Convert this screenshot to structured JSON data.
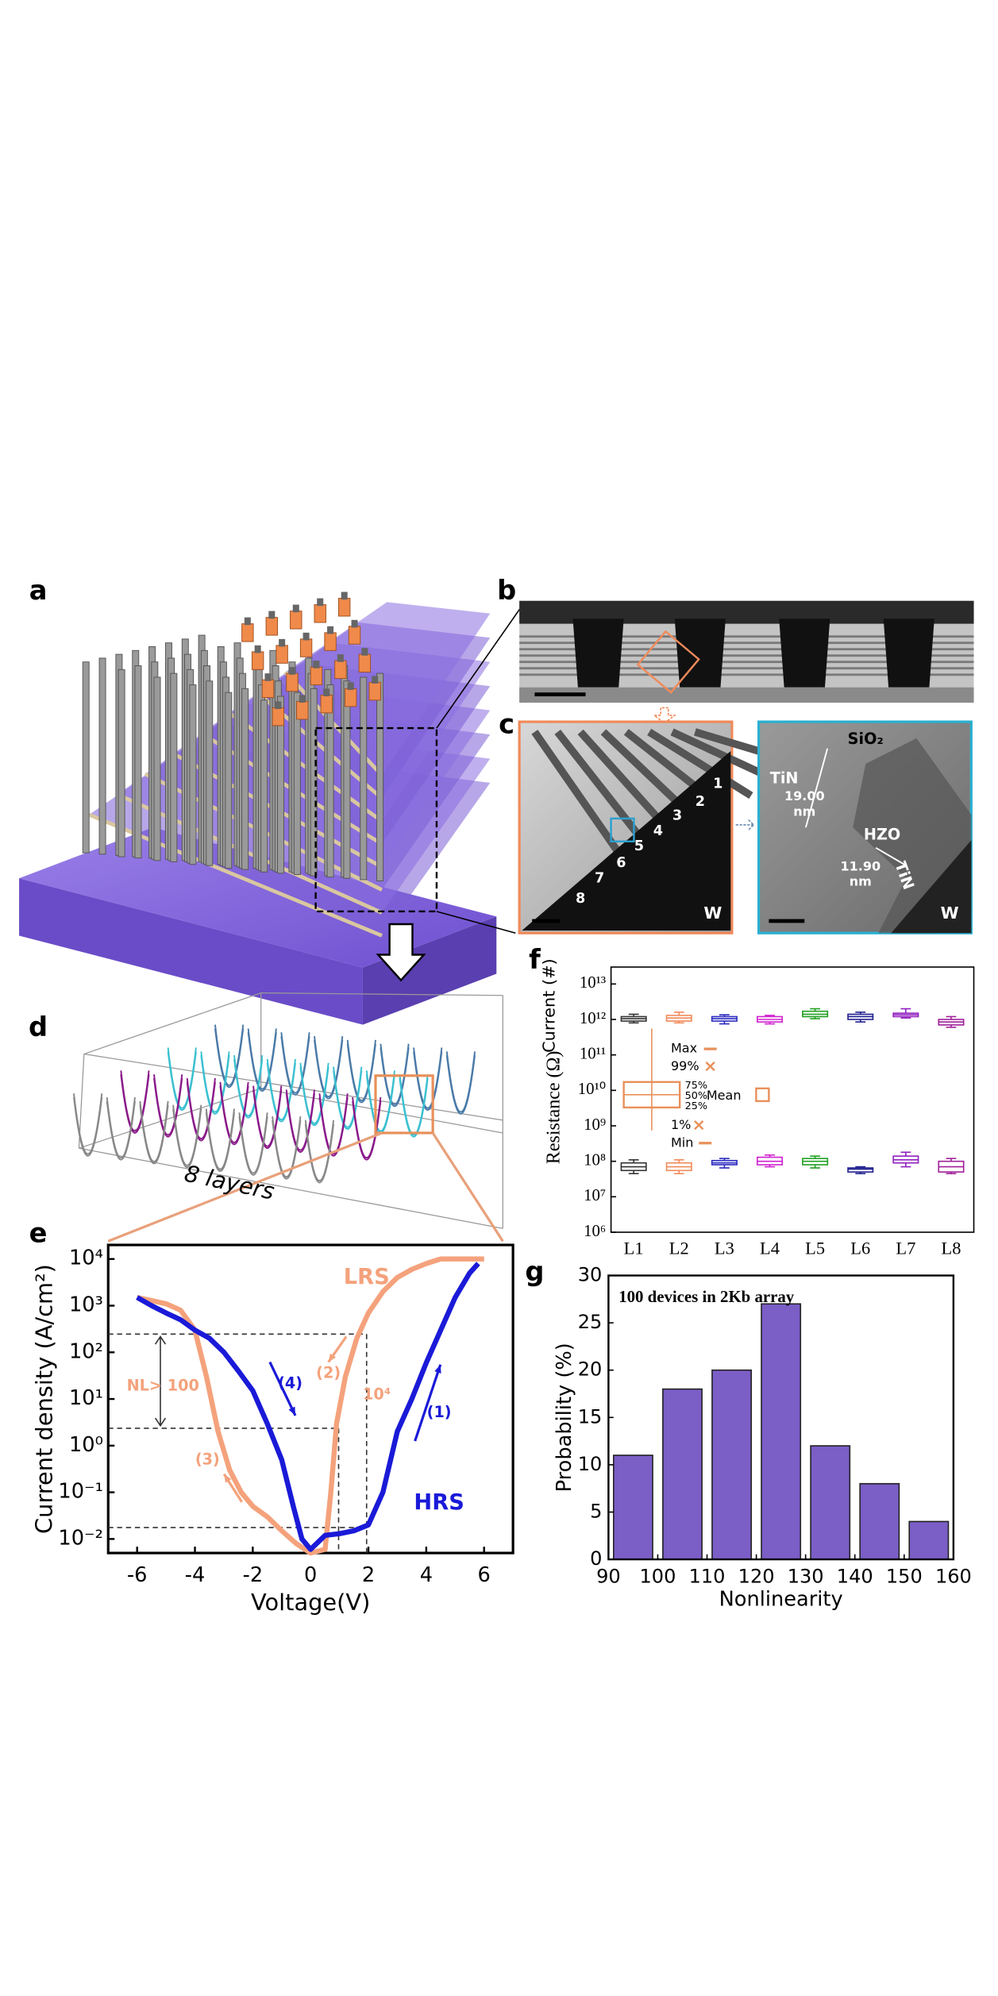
{
  "panel_labels": [
    "a",
    "b",
    "c",
    "d",
    "e",
    "f",
    "g"
  ],
  "tem_labels": {
    "layers": [
      "1",
      "2",
      "3",
      "4",
      "5",
      "6",
      "7",
      "8"
    ],
    "electrode_left": "W",
    "oxide": "SiO₂",
    "tin_top": "TiN",
    "thickness_tin": "19.00",
    "unit_tin": "nm",
    "hzo": "HZO",
    "thickness_hzo": "11.90",
    "unit_hzo": "nm",
    "tin_side": "TiN",
    "electrode_right": "W"
  },
  "stack_label": "8 layers",
  "chart_data": [
    {
      "type": "line",
      "xlabel": "Voltage(V)",
      "ylabel": "Current density (A/cm²)",
      "xlim": [
        -7,
        7
      ],
      "xticks": [
        -6,
        -4,
        -2,
        0,
        2,
        4,
        6
      ],
      "ylim": [
        0.005,
        20000
      ],
      "yscale": "log",
      "yticks": [
        {
          "value": 0.01,
          "label": "10⁻²"
        },
        {
          "value": 0.1,
          "label": "10⁻¹"
        },
        {
          "value": 1,
          "label": "10⁰"
        },
        {
          "value": 10,
          "label": "10¹"
        },
        {
          "value": 100,
          "label": "10²"
        },
        {
          "value": 1000,
          "label": "10³"
        },
        {
          "value": 10000,
          "label": "10⁴"
        }
      ],
      "series": [
        {
          "name": "LRS",
          "color": "#f4a27c",
          "x": [
            -6,
            -5,
            -4.5,
            -4,
            -3.6,
            -3.2,
            -2.8,
            -2.4,
            -2,
            -1.5,
            -1,
            -0.5,
            0,
            0.5,
            0.7,
            0.9,
            1.2,
            1.6,
            2,
            2.5,
            3,
            3.5,
            4,
            4.5,
            5,
            6
          ],
          "values": [
            1500,
            1100,
            800,
            300,
            30,
            2,
            0.3,
            0.1,
            0.05,
            0.03,
            0.015,
            0.008,
            0.005,
            0.006,
            0.1,
            3,
            30,
            200,
            700,
            2000,
            4000,
            6000,
            8000,
            10000,
            10000,
            10000
          ]
        },
        {
          "name": "HRS",
          "color": "#1a1ad8",
          "x": [
            -6,
            -5.5,
            -5,
            -4.5,
            -4,
            -3.5,
            -3,
            -2.5,
            -2,
            -1.5,
            -1,
            -0.6,
            -0.3,
            0,
            0.5,
            1,
            1.5,
            2,
            2.5,
            3,
            3.5,
            4,
            4.5,
            5,
            5.5,
            5.8
          ],
          "values": [
            1500,
            1000,
            700,
            500,
            300,
            200,
            100,
            40,
            15,
            3,
            0.5,
            0.05,
            0.01,
            0.006,
            0.012,
            0.013,
            0.015,
            0.02,
            0.1,
            2,
            10,
            60,
            300,
            1500,
            5000,
            8000
          ]
        }
      ],
      "annotations": [
        "(1)",
        "(2)",
        "(3)",
        "(4)",
        "NL> 100",
        "10⁴"
      ]
    },
    {
      "type": "box",
      "ylabel": "Resistance  (Ω)",
      "ylabel2": "Current (#)",
      "categories": [
        "L1",
        "L2",
        "L3",
        "L4",
        "L5",
        "L6",
        "L7",
        "L8"
      ],
      "colors": [
        "#333333",
        "#f08a5a",
        "#2a2ac0",
        "#d020d0",
        "#20a020",
        "#202090",
        "#9020c0",
        "#a0209a"
      ],
      "ylim": [
        1000000,
        30000000000000
      ],
      "yscale": "log",
      "yticks": [
        {
          "value": 1000000,
          "label": "10⁶"
        },
        {
          "value": 10000000,
          "label": "10⁷"
        },
        {
          "value": 100000000,
          "label": "10⁸"
        },
        {
          "value": 1000000000,
          "label": "10⁹"
        },
        {
          "value": 10000000000,
          "label": "10¹⁰"
        },
        {
          "value": 100000000000,
          "label": "10¹¹"
        },
        {
          "value": 1000000000000,
          "label": "10¹²"
        },
        {
          "value": 10000000000000,
          "label": "10¹³"
        }
      ],
      "series": [
        {
          "min": [
            800000000000.0,
            800000000000.0,
            750000000000.0,
            750000000000.0,
            1050000000000.0,
            850000000000.0,
            1100000000000.0,
            600000000000.0
          ],
          "q1": [
            900000000000.0,
            900000000000.0,
            900000000000.0,
            850000000000.0,
            1200000000000.0,
            1000000000000.0,
            1200000000000.0,
            700000000000.0
          ],
          "median": [
            1050000000000.0,
            1100000000000.0,
            1050000000000.0,
            1000000000000.0,
            1400000000000.0,
            1200000000000.0,
            1350000000000.0,
            850000000000.0
          ],
          "q3": [
            1200000000000.0,
            1300000000000.0,
            1200000000000.0,
            1200000000000.0,
            1700000000000.0,
            1400000000000.0,
            1500000000000.0,
            1000000000000.0
          ],
          "max": [
            1400000000000.0,
            1600000000000.0,
            1350000000000.0,
            1300000000000.0,
            2000000000000.0,
            1600000000000.0,
            2000000000000.0,
            1200000000000.0
          ]
        },
        {
          "min": [
            45000000.0,
            45000000.0,
            65000000.0,
            70000000.0,
            65000000.0,
            45000000.0,
            70000000.0,
            45000000.0
          ],
          "q1": [
            55000000.0,
            55000000.0,
            80000000.0,
            80000000.0,
            80000000.0,
            50000000.0,
            90000000.0,
            50000000.0
          ],
          "median": [
            70000000.0,
            70000000.0,
            90000000.0,
            100000000.0,
            100000000.0,
            60000000.0,
            110000000.0,
            70000000.0
          ],
          "q3": [
            90000000.0,
            90000000.0,
            105000000.0,
            130000000.0,
            120000000.0,
            65000000.0,
            140000000.0,
            100000000.0
          ],
          "max": [
            110000000.0,
            110000000.0,
            120000000.0,
            150000000.0,
            140000000.0,
            70000000.0,
            180000000.0,
            120000000.0
          ]
        }
      ],
      "legend_labels": [
        "Max",
        "99%",
        "75%",
        "50%",
        "25%",
        "Mean",
        "1%",
        "Min"
      ]
    },
    {
      "type": "histogram",
      "title": "100 devices in 2Kb array",
      "xlabel": "Nonlinearity",
      "ylabel": "Probability (%)",
      "bins": [
        90,
        100,
        110,
        120,
        130,
        140,
        150,
        160
      ],
      "values": [
        11,
        18,
        20,
        27,
        12,
        8,
        4
      ],
      "color": "#7b5ec6",
      "xlim": [
        90,
        160
      ],
      "xticks": [
        90,
        100,
        110,
        120,
        130,
        140,
        150,
        160
      ],
      "ylim": [
        0,
        30
      ],
      "yticks": [
        0,
        5,
        10,
        15,
        20,
        25,
        30
      ]
    }
  ]
}
